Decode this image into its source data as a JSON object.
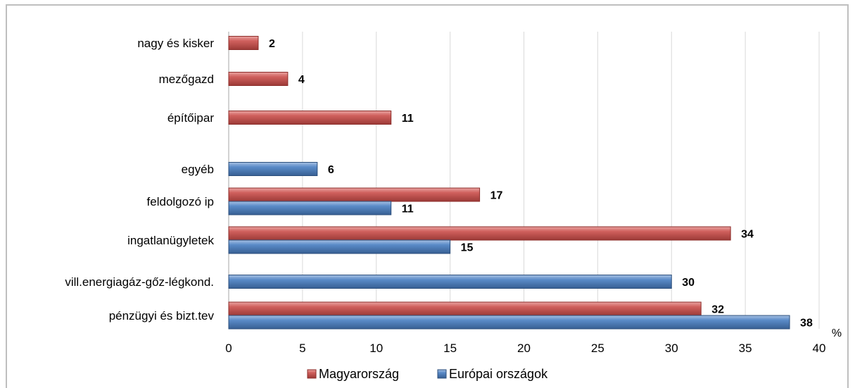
{
  "chart_data": {
    "type": "bar",
    "orientation": "horizontal",
    "categories": [
      "nagy és kisker",
      "mezőgazd",
      "építőipar",
      "egyéb",
      "feldolgozó ip",
      "ingatlanügyletek",
      "vill.energiagáz-gőz-légkond.",
      "pénzügyi és bizt.tev"
    ],
    "series": [
      {
        "name": "Magyarország",
        "color": "#c0504d",
        "values": [
          2,
          4,
          11,
          null,
          17,
          34,
          null,
          32
        ]
      },
      {
        "name": "Európai országok",
        "color": "#4f81bd",
        "values": [
          null,
          null,
          null,
          6,
          11,
          15,
          30,
          38
        ]
      }
    ],
    "x_ticks": [
      "0",
      "5",
      "10",
      "15",
      "20",
      "25",
      "30",
      "35",
      "40"
    ],
    "xlim": [
      0,
      40
    ],
    "unit_label": "%",
    "grid": "vertical",
    "legend_position": "bottom"
  }
}
